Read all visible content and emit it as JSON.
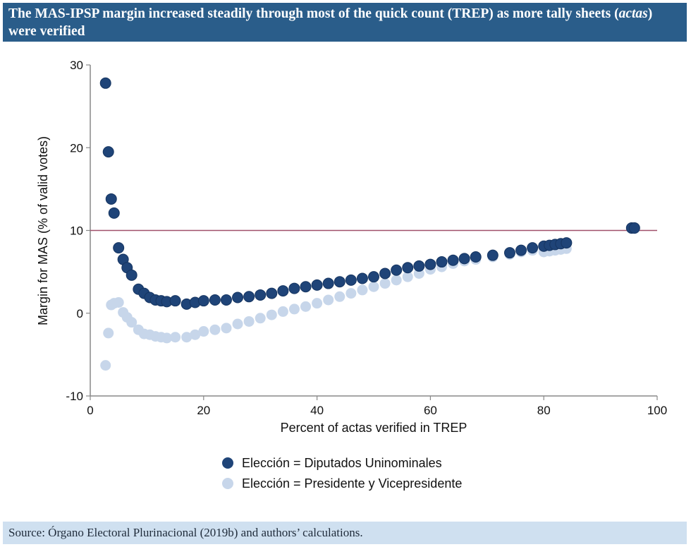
{
  "title_parts": {
    "before": "The MAS-IPSP margin increased steadily through most of the quick count (TREP) as more tally sheets (",
    "italic": "actas",
    "after": ") were verified"
  },
  "source": "Source: Órgano Electoral Plurinacional (2019b) and authors’ calculations.",
  "colors": {
    "title_bg": "#2a5d8a",
    "source_bg": "#cfe0f0",
    "dark_series": "#1f4478",
    "light_series": "#c7d6ea",
    "ref_line": "#a0506a",
    "axis": "#888888"
  },
  "chart_data": {
    "type": "scatter",
    "title": "The MAS-IPSP margin increased steadily through most of the quick count (TREP) as more tally sheets (actas) were verified",
    "xlabel": "Percent of actas verified in TREP",
    "ylabel": "Margin for MAS (% of valid votes)",
    "xlim": [
      0,
      100
    ],
    "ylim": [
      -10,
      30
    ],
    "xticks": [
      "0",
      "20",
      "40",
      "60",
      "80",
      "100"
    ],
    "yticks": [
      "-10",
      "0",
      "10",
      "20",
      "30"
    ],
    "grid": false,
    "legend_position": "bottom",
    "reference_line": {
      "y": 10
    },
    "series": [
      {
        "name": "Elección = Diputados Uninominales",
        "color": "#1f4478",
        "points": [
          [
            2.7,
            27.8
          ],
          [
            3.2,
            19.5
          ],
          [
            3.7,
            13.8
          ],
          [
            4.2,
            12.1
          ],
          [
            5,
            7.9
          ],
          [
            5.8,
            6.5
          ],
          [
            6.5,
            5.5
          ],
          [
            7.3,
            4.6
          ],
          [
            8.5,
            2.9
          ],
          [
            9.5,
            2.4
          ],
          [
            10.5,
            1.9
          ],
          [
            11.5,
            1.6
          ],
          [
            12.5,
            1.5
          ],
          [
            13.5,
            1.4
          ],
          [
            15,
            1.5
          ],
          [
            17,
            1.1
          ],
          [
            18.5,
            1.3
          ],
          [
            20,
            1.5
          ],
          [
            22,
            1.6
          ],
          [
            24,
            1.6
          ],
          [
            26,
            1.9
          ],
          [
            28,
            2.0
          ],
          [
            30,
            2.2
          ],
          [
            32,
            2.4
          ],
          [
            34,
            2.7
          ],
          [
            36,
            3.0
          ],
          [
            38,
            3.2
          ],
          [
            40,
            3.4
          ],
          [
            42,
            3.6
          ],
          [
            44,
            3.8
          ],
          [
            46,
            4.0
          ],
          [
            48,
            4.2
          ],
          [
            50,
            4.4
          ],
          [
            52,
            4.8
          ],
          [
            54,
            5.2
          ],
          [
            56,
            5.5
          ],
          [
            58,
            5.7
          ],
          [
            60,
            5.9
          ],
          [
            62,
            6.2
          ],
          [
            64,
            6.4
          ],
          [
            66,
            6.6
          ],
          [
            68,
            6.8
          ],
          [
            71,
            7.0
          ],
          [
            74,
            7.3
          ],
          [
            76,
            7.6
          ],
          [
            78,
            7.9
          ],
          [
            80,
            8.1
          ],
          [
            81,
            8.2
          ],
          [
            82,
            8.3
          ],
          [
            83,
            8.4
          ],
          [
            84,
            8.5
          ],
          [
            95.5,
            10.3
          ],
          [
            96,
            10.3
          ]
        ]
      },
      {
        "name": "Elección = Presidente y Vicepresidente",
        "color": "#c7d6ea",
        "points": [
          [
            2.7,
            -6.3
          ],
          [
            3.2,
            -2.4
          ],
          [
            3.7,
            1.0
          ],
          [
            4.2,
            1.2
          ],
          [
            5,
            1.3
          ],
          [
            5.8,
            0.1
          ],
          [
            6.5,
            -0.5
          ],
          [
            7.3,
            -1.1
          ],
          [
            8.5,
            -2.0
          ],
          [
            9.5,
            -2.5
          ],
          [
            10.5,
            -2.6
          ],
          [
            11.5,
            -2.8
          ],
          [
            12.5,
            -2.9
          ],
          [
            13.5,
            -3.0
          ],
          [
            15,
            -2.9
          ],
          [
            17,
            -2.9
          ],
          [
            18.5,
            -2.6
          ],
          [
            20,
            -2.2
          ],
          [
            22,
            -2.0
          ],
          [
            24,
            -1.8
          ],
          [
            26,
            -1.3
          ],
          [
            28,
            -1.0
          ],
          [
            30,
            -0.6
          ],
          [
            32,
            -0.2
          ],
          [
            34,
            0.2
          ],
          [
            36,
            0.5
          ],
          [
            38,
            0.8
          ],
          [
            40,
            1.2
          ],
          [
            42,
            1.6
          ],
          [
            44,
            2.0
          ],
          [
            46,
            2.4
          ],
          [
            48,
            2.8
          ],
          [
            50,
            3.2
          ],
          [
            52,
            3.6
          ],
          [
            54,
            4.0
          ],
          [
            56,
            4.4
          ],
          [
            58,
            4.8
          ],
          [
            60,
            5.3
          ],
          [
            62,
            5.6
          ],
          [
            64,
            6.0
          ],
          [
            66,
            6.3
          ],
          [
            68,
            6.5
          ],
          [
            71,
            6.8
          ],
          [
            74,
            7.1
          ],
          [
            76,
            7.4
          ],
          [
            78,
            7.6
          ],
          [
            80,
            7.4
          ],
          [
            81,
            7.5
          ],
          [
            82,
            7.6
          ],
          [
            83,
            7.7
          ],
          [
            84,
            7.8
          ],
          [
            95.5,
            10.2
          ],
          [
            96,
            10.2
          ]
        ]
      }
    ]
  }
}
